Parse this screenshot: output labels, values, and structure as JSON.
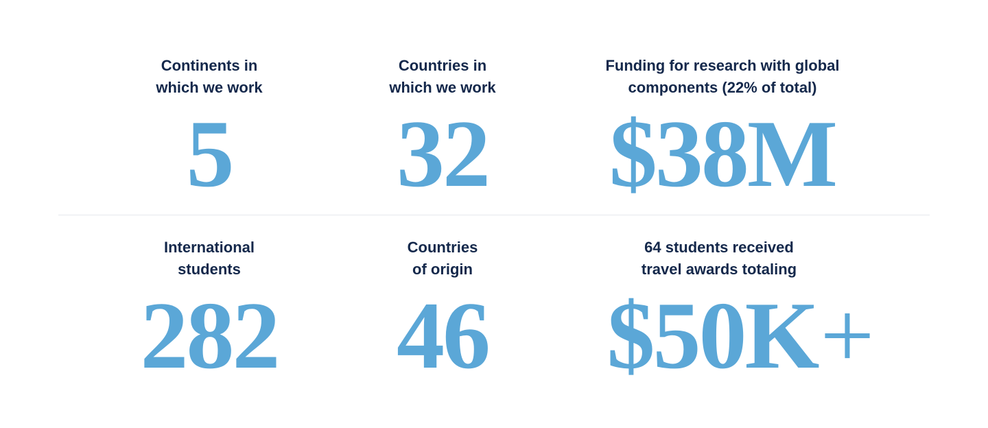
{
  "colors": {
    "label": "#14284b",
    "number": "#5ba7d7"
  },
  "stats": [
    {
      "label_lines": [
        "Continents in",
        "which we work"
      ],
      "value": "5",
      "suffix": ""
    },
    {
      "label_lines": [
        "Countries in",
        "which we work"
      ],
      "value": "32",
      "suffix": ""
    },
    {
      "label_lines": [
        "Funding for research with global",
        "components (22% of total)"
      ],
      "value": "$38M",
      "suffix": ""
    },
    {
      "label_lines": [
        "International",
        "students"
      ],
      "value": "282",
      "suffix": ""
    },
    {
      "label_lines": [
        "Countries",
        "of origin"
      ],
      "value": "46",
      "suffix": ""
    },
    {
      "label_lines": [
        "64 students received",
        "travel awards totaling"
      ],
      "value": "$50K",
      "suffix": "+"
    }
  ]
}
